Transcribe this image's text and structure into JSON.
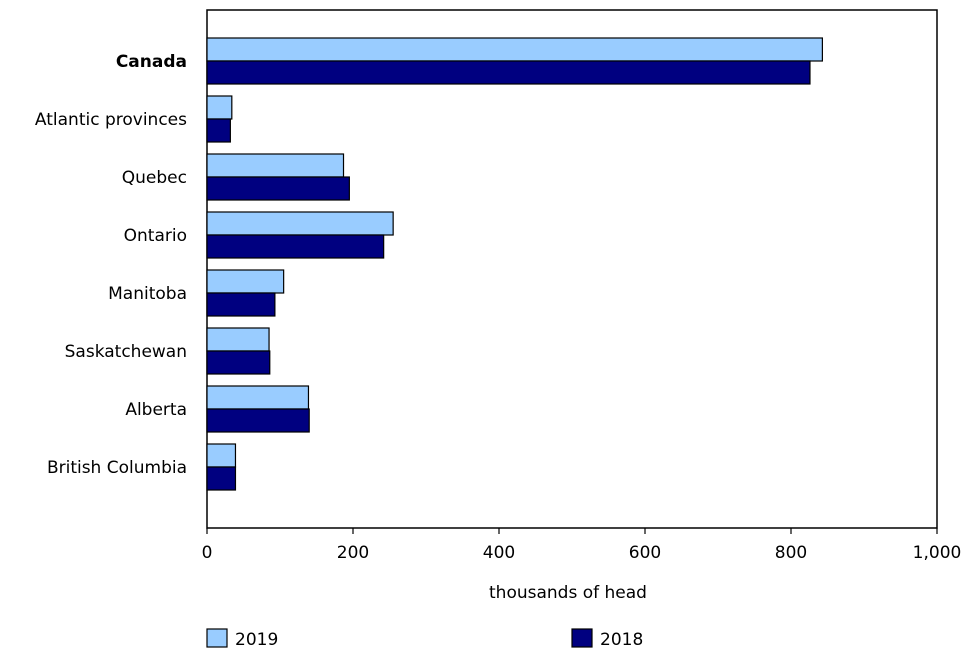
{
  "chart_data": {
    "type": "bar",
    "orientation": "horizontal",
    "categories": [
      "Canada",
      "Atlantic provinces",
      "Quebec",
      "Ontario",
      "Manitoba",
      "Saskatchewan",
      "Alberta",
      "British Columbia"
    ],
    "emphasized_category": "Canada",
    "series": [
      {
        "name": "2019",
        "color": "#99ccff",
        "values": [
          843,
          34,
          187,
          255,
          105,
          85,
          139,
          39
        ]
      },
      {
        "name": "2018",
        "color": "#000080",
        "values": [
          826,
          32,
          195,
          242,
          93,
          86,
          140,
          39
        ]
      }
    ],
    "xlabel": "thousands of head",
    "xlim": [
      0,
      1000
    ],
    "xticks": [
      0,
      200,
      400,
      600,
      800,
      1000
    ],
    "xtick_labels": [
      "0",
      "200",
      "400",
      "600",
      "800",
      "1,000"
    ],
    "grid": false,
    "legend_position": "bottom"
  }
}
